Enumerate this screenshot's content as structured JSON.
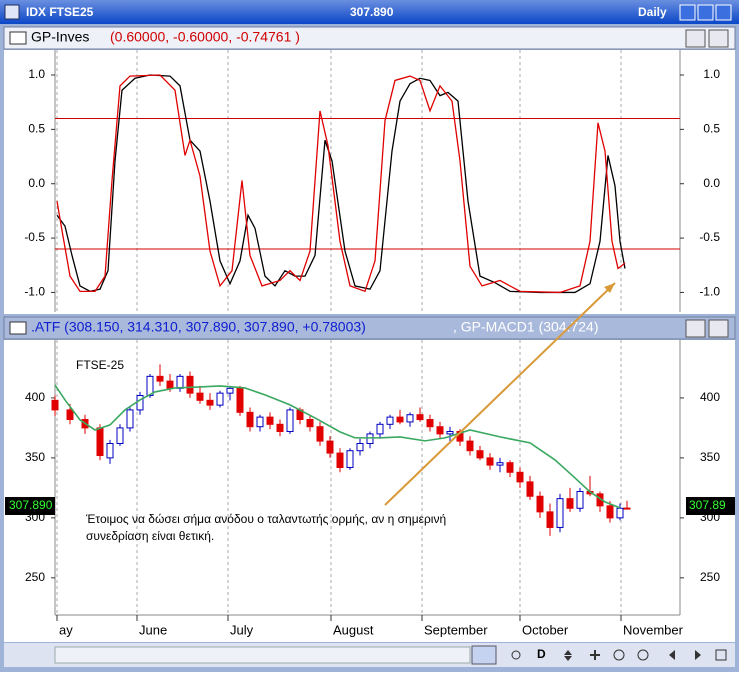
{
  "window": {
    "title": "IDX FTSE25",
    "price": "307.890",
    "period": "Daily",
    "button_d": "D"
  },
  "chart_data": [
    {
      "type": "line",
      "name": "GP-Inves",
      "params": "(0.60000, -0.60000, -0.74761 )",
      "xlim": [
        0,
        125
      ],
      "ylim": [
        -1.18,
        1.23
      ],
      "yticks": [
        {
          "value": 1.0,
          "label": "1.0"
        },
        {
          "value": 0.5,
          "label": "0.5"
        },
        {
          "value": 0.0,
          "label": "0.0"
        },
        {
          "value": -0.5,
          "label": "-0.5"
        },
        {
          "value": -1.0,
          "label": "-1.0"
        }
      ],
      "levels": [
        0.6,
        -0.6
      ],
      "level_color": "#d00000",
      "series": [
        {
          "color": "#000000",
          "x": [
            0.4,
            2,
            3.4,
            5,
            7,
            9,
            10.6,
            12,
            13.4,
            16,
            19,
            23,
            25,
            27,
            29,
            31,
            33,
            35,
            37,
            38.6,
            40,
            42,
            44,
            46,
            48,
            50,
            52,
            54,
            55.4,
            58,
            60,
            63,
            65,
            67.4,
            69,
            71,
            73,
            75,
            77,
            78.6,
            80.6,
            82.6,
            85,
            88,
            91,
            97,
            104,
            107,
            109,
            110.6,
            112,
            113,
            114
          ],
          "values": [
            -0.29,
            -0.39,
            -0.66,
            -0.94,
            -0.99,
            -0.97,
            -0.8,
            0.21,
            0.86,
            0.97,
            1.0,
            0.99,
            0.9,
            0.4,
            0.3,
            -0.16,
            -0.71,
            -0.92,
            -0.71,
            -0.29,
            -0.41,
            -0.85,
            -0.94,
            -0.8,
            -0.85,
            -0.85,
            -0.66,
            0.4,
            0.21,
            -0.62,
            -0.94,
            -0.97,
            -0.8,
            0.3,
            0.76,
            0.92,
            0.97,
            0.95,
            0.81,
            0.84,
            0.76,
            -0.16,
            -0.85,
            -0.91,
            -0.99,
            -1.0,
            -1.0,
            -0.92,
            -0.53,
            0.26,
            -0.02,
            -0.53,
            -0.78
          ]
        },
        {
          "color": "#e00000",
          "x": [
            0.4,
            1.4,
            3,
            5,
            8,
            10,
            11.4,
            13,
            15,
            21,
            24,
            26,
            27,
            29,
            31,
            33,
            35.4,
            37.4,
            39,
            41.4,
            45,
            47,
            49,
            51,
            53,
            54.6,
            57,
            59,
            62,
            64,
            66,
            68,
            71,
            73,
            75,
            77,
            79.4,
            81,
            83,
            85.4,
            89,
            93,
            101,
            105,
            107,
            108.6,
            110,
            111.4,
            112.6,
            114
          ],
          "values": [
            -0.16,
            -0.43,
            -0.85,
            -0.99,
            -0.99,
            -0.85,
            0.03,
            0.9,
            0.99,
            1.0,
            0.86,
            0.26,
            0.4,
            0.07,
            -0.62,
            -0.94,
            -0.8,
            0.03,
            -0.66,
            -0.94,
            -0.89,
            -0.8,
            -0.89,
            -0.62,
            0.67,
            0.35,
            -0.53,
            -0.94,
            -0.99,
            -0.71,
            0.58,
            0.95,
            0.99,
            0.95,
            0.67,
            0.9,
            0.76,
            0.21,
            -0.76,
            -0.94,
            -0.89,
            -0.99,
            -1.0,
            -0.94,
            -0.53,
            0.56,
            0.3,
            -0.53,
            -0.78,
            -0.73
          ]
        }
      ]
    },
    {
      "type": "candlestick",
      "name": ".ATF (308.150, 314.310, 307.890, 307.890, +0.78003)",
      "name2": ", GP-MACD1 (304.724)",
      "label": "FTSE-25",
      "annotation": [
        "Έτοιμος να δώσει σήμα ανόδου ο ταλαντωτής ορμής, αν η σημερινή",
        "συνεδρίαση είναι θετική."
      ],
      "price_label_left": "307.890",
      "price_label_right": "307.89",
      "xlim": [
        0,
        125
      ],
      "ylim": [
        219,
        448.3
      ],
      "yticks": [
        400,
        350,
        300,
        250
      ],
      "xticks": [
        {
          "value": 0.4,
          "label": "ay"
        },
        {
          "value": 16.4,
          "label": "June"
        },
        {
          "value": 34.6,
          "label": "July"
        },
        {
          "value": 55.2,
          "label": "August"
        },
        {
          "value": 73.4,
          "label": "September"
        },
        {
          "value": 93,
          "label": "October"
        },
        {
          "value": 113.2,
          "label": "November"
        }
      ],
      "up_color": "#0000c0",
      "down_color": "#e00000",
      "x": [
        0,
        3,
        6,
        9,
        11,
        13,
        15,
        17,
        19,
        21,
        23,
        25,
        27,
        29,
        31,
        33,
        35,
        37,
        39,
        41,
        43,
        45,
        47,
        49,
        51,
        53,
        55,
        57,
        59,
        61,
        63,
        65,
        67,
        69,
        71,
        73,
        75,
        77,
        79,
        81,
        83,
        85,
        87,
        89,
        91,
        93,
        95,
        97,
        99,
        101,
        103,
        105,
        107,
        109,
        111,
        113,
        114.4
      ],
      "open": [
        398,
        390,
        382,
        375,
        350,
        362,
        375,
        390,
        402,
        418,
        414,
        408,
        418,
        404,
        398,
        394,
        404,
        408,
        388,
        376,
        384,
        378,
        372,
        390,
        382,
        376,
        364,
        354,
        342,
        356,
        362,
        370,
        378,
        384,
        380,
        386,
        382,
        376,
        370,
        372,
        364,
        356,
        350,
        344,
        346,
        338,
        330,
        318,
        305,
        292,
        316,
        308,
        322,
        320,
        310,
        300,
        308.15
      ],
      "high": [
        402,
        395,
        386,
        378,
        365,
        378,
        392,
        405,
        420,
        428,
        420,
        420,
        422,
        410,
        404,
        406,
        410,
        410,
        392,
        386,
        388,
        382,
        392,
        392,
        386,
        380,
        368,
        358,
        358,
        366,
        372,
        380,
        386,
        390,
        388,
        392,
        386,
        380,
        376,
        374,
        368,
        360,
        354,
        350,
        348,
        342,
        335,
        322,
        312,
        320,
        325,
        325,
        335,
        322,
        314,
        312,
        314.31
      ],
      "low": [
        385,
        378,
        370,
        348,
        345,
        360,
        372,
        386,
        400,
        410,
        405,
        405,
        400,
        395,
        390,
        392,
        398,
        385,
        372,
        372,
        374,
        368,
        370,
        378,
        372,
        360,
        350,
        338,
        340,
        352,
        358,
        366,
        374,
        378,
        376,
        380,
        372,
        366,
        362,
        360,
        352,
        348,
        340,
        338,
        334,
        325,
        315,
        300,
        285,
        288,
        305,
        305,
        318,
        305,
        296,
        298,
        307.89
      ],
      "close": [
        390,
        382,
        375,
        352,
        362,
        375,
        390,
        402,
        418,
        414,
        408,
        418,
        404,
        398,
        394,
        404,
        408,
        388,
        376,
        384,
        378,
        372,
        390,
        382,
        376,
        364,
        354,
        342,
        356,
        362,
        370,
        378,
        384,
        380,
        386,
        382,
        376,
        370,
        372,
        364,
        356,
        350,
        344,
        346,
        338,
        330,
        318,
        305,
        292,
        316,
        308,
        322,
        320,
        310,
        300,
        308,
        307.89
      ],
      "ma": {
        "color": "#3aa860",
        "x": [
          0,
          2,
          5,
          8,
          11,
          14,
          17,
          20,
          24,
          29,
          33,
          38,
          42,
          47,
          52,
          57,
          60,
          65,
          69,
          74,
          78,
          83,
          89,
          95,
          100,
          104,
          107,
          110,
          113
        ],
        "values": [
          410.8,
          398.3,
          381.7,
          373.3,
          377.5,
          390,
          398.3,
          405,
          408.3,
          409.2,
          410,
          408.3,
          402.5,
          394.2,
          383.3,
          371.7,
          366.7,
          366.7,
          367.5,
          364.2,
          366.7,
          373.3,
          367.5,
          362.5,
          348.3,
          333.3,
          321.7,
          313.3,
          308.3
        ]
      }
    }
  ]
}
